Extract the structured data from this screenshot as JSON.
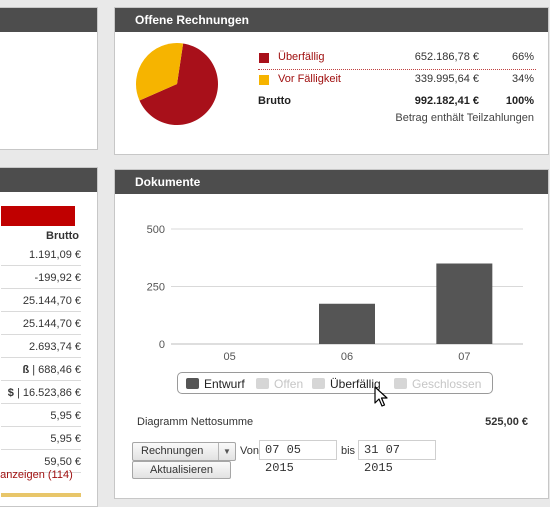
{
  "offene": {
    "title": "Offene Rechnungen",
    "rows": [
      {
        "name": "Überfällig",
        "amount": "652.186,78 €",
        "percent": "66%",
        "color": "#a8101a"
      },
      {
        "name": "Vor Fälligkeit",
        "amount": "339.995,64 €",
        "percent": "34%",
        "color": "#f6b400"
      }
    ],
    "total": {
      "name": "Brutto",
      "amount": "992.182,41 €",
      "percent": "100%"
    },
    "note": "Betrag enthält Teilzahlungen",
    "pie": {
      "values": [
        66,
        34
      ]
    }
  },
  "left_table": {
    "header": "Brutto",
    "rows": [
      "1.191,09 €",
      "-199,92 €",
      "25.144,70 €",
      "25.144,70 €",
      "2.693,74 €",
      "| 688,46 €",
      "| 16.523,86 €",
      "5,95 €",
      "5,95 €",
      "59,50 €"
    ],
    "row_prefixes": [
      "",
      "",
      "",
      "",
      "",
      "ß",
      "$",
      "",
      "",
      ""
    ],
    "link": "e anzeigen (114)"
  },
  "dokumente": {
    "title": "Dokumente",
    "legend": [
      {
        "label": "Entwurf",
        "color": "#555555",
        "active": true
      },
      {
        "label": "Offen",
        "color": "#d6d6d6",
        "active": false
      },
      {
        "label": "Überfällig",
        "color": "#d6d6d6",
        "active": true
      },
      {
        "label": "Geschlossen",
        "color": "#d6d6d6",
        "active": false
      }
    ],
    "diagram_label": "Diagramm Nettosumme",
    "diagram_value": "525,00 €",
    "select_value": "Rechnungen",
    "von_label": "Von",
    "von_value": "07 05 2015",
    "bis_label": "bis",
    "bis_value": "31 07 2015",
    "update_button": "Aktualisieren"
  },
  "chart_data": {
    "type": "bar",
    "categories": [
      "05",
      "06",
      "07"
    ],
    "series": [
      {
        "values": [
          0,
          175,
          350
        ]
      }
    ],
    "ylim": [
      0,
      500
    ],
    "yticks": [
      0,
      250,
      500
    ],
    "grid": true,
    "bar_color": "#555555"
  }
}
